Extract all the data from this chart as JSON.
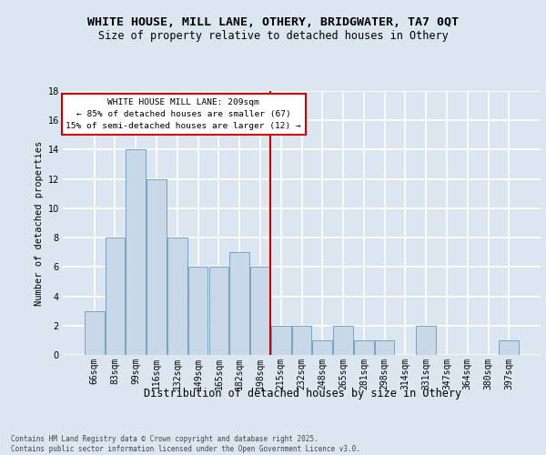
{
  "title": "WHITE HOUSE, MILL LANE, OTHERY, BRIDGWATER, TA7 0QT",
  "subtitle": "Size of property relative to detached houses in Othery",
  "xlabel": "Distribution of detached houses by size in Othery",
  "ylabel": "Number of detached properties",
  "categories": [
    "66sqm",
    "83sqm",
    "99sqm",
    "116sqm",
    "132sqm",
    "149sqm",
    "165sqm",
    "182sqm",
    "198sqm",
    "215sqm",
    "232sqm",
    "248sqm",
    "265sqm",
    "281sqm",
    "298sqm",
    "314sqm",
    "331sqm",
    "347sqm",
    "364sqm",
    "380sqm",
    "397sqm"
  ],
  "values": [
    3,
    8,
    14,
    12,
    8,
    6,
    6,
    7,
    6,
    2,
    2,
    1,
    2,
    1,
    1,
    0,
    2,
    0,
    0,
    0,
    1
  ],
  "bar_color": "#c8d8e8",
  "bar_edge_color": "#6699bb",
  "background_color": "#dce6f0",
  "grid_color": "#ffffff",
  "vline_color": "#cc0000",
  "annotation_text": "WHITE HOUSE MILL LANE: 209sqm\n← 85% of detached houses are smaller (67)\n15% of semi-detached houses are larger (12) →",
  "annotation_box_color": "#ffffff",
  "annotation_box_edge": "#cc0000",
  "ylim": [
    0,
    18
  ],
  "yticks": [
    0,
    2,
    4,
    6,
    8,
    10,
    12,
    14,
    16,
    18
  ],
  "footnote": "Contains HM Land Registry data © Crown copyright and database right 2025.\nContains public sector information licensed under the Open Government Licence v3.0.",
  "title_fontsize": 9.5,
  "subtitle_fontsize": 8.5,
  "xlabel_fontsize": 8.5,
  "ylabel_fontsize": 7.5,
  "tick_fontsize": 7,
  "annot_fontsize": 6.8,
  "footnote_fontsize": 5.5
}
